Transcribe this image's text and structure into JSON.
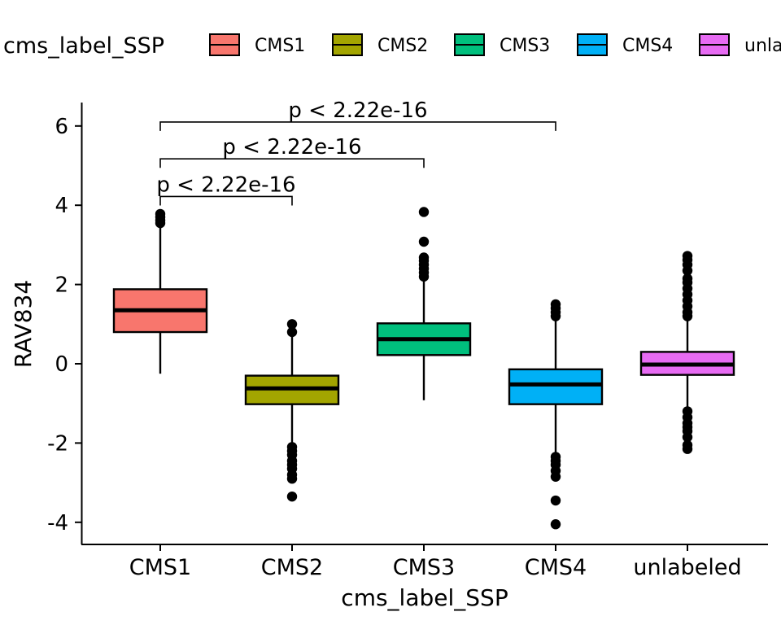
{
  "chart_data": {
    "type": "boxplot",
    "xlabel": "cms_label_SSP",
    "ylabel": "RAV834",
    "ylim": [
      -4.5,
      6.6
    ],
    "yticks": [
      -4,
      -2,
      0,
      2,
      4,
      6
    ],
    "ytick_labels": [
      "-4",
      "-2",
      "0",
      "2",
      "4",
      "6"
    ],
    "categories": [
      "CMS1",
      "CMS2",
      "CMS3",
      "CMS4",
      "unlabeled"
    ],
    "legend": {
      "title": "cms_label_SSP",
      "placement": "top",
      "entries": [
        "CMS1",
        "CMS2",
        "CMS3",
        "CMS4",
        "unla"
      ]
    },
    "grid": false,
    "series": [
      {
        "category": "CMS1",
        "color": "#F8766D",
        "q1": 0.8,
        "median": 1.35,
        "q3": 1.88,
        "whisker_low": -0.25,
        "whisker_high": 3.5,
        "outliers": [
          3.55,
          3.62,
          3.7,
          3.78
        ]
      },
      {
        "category": "CMS2",
        "color": "#A3A500",
        "q1": -1.02,
        "median": -0.62,
        "q3": -0.3,
        "whisker_low": -2.05,
        "whisker_high": 0.75,
        "outliers": [
          0.8,
          1.0,
          -2.1,
          -2.2,
          -2.3,
          -2.45,
          -2.55,
          -2.65,
          -2.8,
          -2.9,
          -3.35
        ]
      },
      {
        "category": "CMS3",
        "color": "#00BF7D",
        "q1": 0.22,
        "median": 0.62,
        "q3": 1.02,
        "whisker_low": -0.92,
        "whisker_high": 2.15,
        "outliers": [
          2.2,
          2.3,
          2.4,
          2.5,
          2.6,
          2.68,
          3.08,
          3.83
        ]
      },
      {
        "category": "CMS4",
        "color": "#00B0F6",
        "q1": -1.02,
        "median": -0.52,
        "q3": -0.14,
        "whisker_low": -2.25,
        "whisker_high": 1.15,
        "outliers": [
          1.2,
          1.3,
          1.4,
          1.5,
          -2.35,
          -2.45,
          -2.55,
          -2.7,
          -2.85,
          -3.45,
          -4.05
        ]
      },
      {
        "category": "unlabeled",
        "color": "#E76BF3",
        "q1": -0.28,
        "median": -0.02,
        "q3": 0.3,
        "whisker_low": -1.15,
        "whisker_high": 1.15,
        "outliers": [
          1.2,
          1.3,
          1.45,
          1.6,
          1.75,
          1.9,
          2.05,
          2.15,
          2.35,
          2.5,
          2.62,
          2.72,
          -1.2,
          -1.35,
          -1.5,
          -1.6,
          -1.7,
          -1.85,
          -2.05,
          -2.15
        ]
      }
    ],
    "annotations": [
      {
        "from": "CMS1",
        "to": "CMS2",
        "y": 4.22,
        "label": "p < 2.22e-16"
      },
      {
        "from": "CMS1",
        "to": "CMS3",
        "y": 5.17,
        "label": "p < 2.22e-16"
      },
      {
        "from": "CMS1",
        "to": "CMS4",
        "y": 6.1,
        "label": "p < 2.22e-16"
      }
    ]
  }
}
